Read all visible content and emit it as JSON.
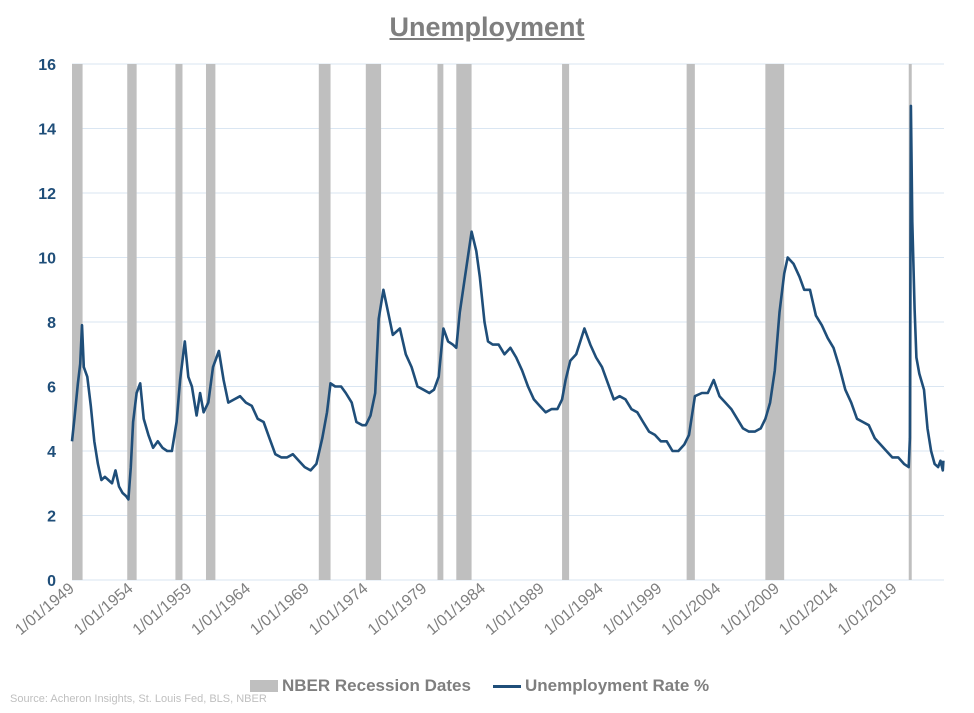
{
  "chart_data": {
    "type": "line",
    "title": "Unemployment",
    "ylim": [
      0,
      16
    ],
    "yticks": [
      0,
      2,
      4,
      6,
      8,
      10,
      12,
      14,
      16
    ],
    "xlim": [
      1948.9,
      2023.1
    ],
    "xtick_labels": [
      "1/01/1949",
      "1/01/1954",
      "1/01/1959",
      "1/01/1964",
      "1/01/1969",
      "1/01/1974",
      "1/01/1979",
      "1/01/1984",
      "1/01/1989",
      "1/01/1994",
      "1/01/1999",
      "1/01/2004",
      "1/01/2009",
      "1/01/2014",
      "1/01/2019"
    ],
    "xtick_years": [
      1949,
      1954,
      1959,
      1964,
      1969,
      1974,
      1979,
      1984,
      1989,
      1994,
      1999,
      2004,
      2009,
      2014,
      2019
    ],
    "grid": true,
    "legend_placement": "bottom",
    "colors": {
      "recession": "#bfbfbf",
      "line": "#1f4e79",
      "grid": "#dae6f2",
      "axis_labels": "#1f4e79",
      "xlabels": "#7f7f7f"
    },
    "recessions": [
      [
        1948.9,
        1949.8
      ],
      [
        1953.6,
        1954.4
      ],
      [
        1957.7,
        1958.3
      ],
      [
        1960.3,
        1961.1
      ],
      [
        1969.9,
        1970.9
      ],
      [
        1973.9,
        1975.2
      ],
      [
        1980.0,
        1980.5
      ],
      [
        1981.6,
        1982.9
      ],
      [
        1990.6,
        1991.2
      ],
      [
        2001.2,
        2001.9
      ],
      [
        2007.9,
        2009.5
      ],
      [
        2020.1,
        2020.3
      ]
    ],
    "series": [
      {
        "name": "NBER Recession Dates",
        "type": "bands"
      },
      {
        "name": "Unemployment Rate %",
        "type": "line",
        "points": [
          [
            1948.9,
            4.3
          ],
          [
            1949.1,
            5.0
          ],
          [
            1949.4,
            6.1
          ],
          [
            1949.6,
            6.7
          ],
          [
            1949.75,
            7.9
          ],
          [
            1949.9,
            6.6
          ],
          [
            1950.2,
            6.3
          ],
          [
            1950.5,
            5.4
          ],
          [
            1950.8,
            4.3
          ],
          [
            1951.1,
            3.6
          ],
          [
            1951.4,
            3.1
          ],
          [
            1951.7,
            3.2
          ],
          [
            1952.0,
            3.1
          ],
          [
            1952.3,
            3.0
          ],
          [
            1952.6,
            3.4
          ],
          [
            1952.9,
            2.9
          ],
          [
            1953.2,
            2.7
          ],
          [
            1953.5,
            2.6
          ],
          [
            1953.7,
            2.5
          ],
          [
            1953.9,
            3.5
          ],
          [
            1954.1,
            4.9
          ],
          [
            1954.4,
            5.8
          ],
          [
            1954.7,
            6.1
          ],
          [
            1955.0,
            5.0
          ],
          [
            1955.4,
            4.5
          ],
          [
            1955.8,
            4.1
          ],
          [
            1956.2,
            4.3
          ],
          [
            1956.6,
            4.1
          ],
          [
            1957.0,
            4.0
          ],
          [
            1957.4,
            4.0
          ],
          [
            1957.8,
            4.9
          ],
          [
            1958.1,
            6.2
          ],
          [
            1958.5,
            7.4
          ],
          [
            1958.8,
            6.3
          ],
          [
            1959.1,
            6.0
          ],
          [
            1959.5,
            5.1
          ],
          [
            1959.8,
            5.8
          ],
          [
            1960.1,
            5.2
          ],
          [
            1960.5,
            5.5
          ],
          [
            1960.9,
            6.6
          ],
          [
            1961.4,
            7.1
          ],
          [
            1961.8,
            6.2
          ],
          [
            1962.2,
            5.5
          ],
          [
            1962.7,
            5.6
          ],
          [
            1963.2,
            5.7
          ],
          [
            1963.7,
            5.5
          ],
          [
            1964.2,
            5.4
          ],
          [
            1964.7,
            5.0
          ],
          [
            1965.2,
            4.9
          ],
          [
            1965.7,
            4.4
          ],
          [
            1966.2,
            3.9
          ],
          [
            1966.7,
            3.8
          ],
          [
            1967.2,
            3.8
          ],
          [
            1967.7,
            3.9
          ],
          [
            1968.2,
            3.7
          ],
          [
            1968.7,
            3.5
          ],
          [
            1969.2,
            3.4
          ],
          [
            1969.7,
            3.6
          ],
          [
            1970.2,
            4.4
          ],
          [
            1970.6,
            5.2
          ],
          [
            1970.9,
            6.1
          ],
          [
            1971.3,
            6.0
          ],
          [
            1971.8,
            6.0
          ],
          [
            1972.2,
            5.8
          ],
          [
            1972.7,
            5.5
          ],
          [
            1973.1,
            4.9
          ],
          [
            1973.6,
            4.8
          ],
          [
            1973.9,
            4.8
          ],
          [
            1974.3,
            5.1
          ],
          [
            1974.7,
            5.8
          ],
          [
            1975.0,
            8.1
          ],
          [
            1975.4,
            9.0
          ],
          [
            1975.8,
            8.3
          ],
          [
            1976.2,
            7.6
          ],
          [
            1976.8,
            7.8
          ],
          [
            1977.3,
            7.0
          ],
          [
            1977.8,
            6.6
          ],
          [
            1978.3,
            6.0
          ],
          [
            1978.8,
            5.9
          ],
          [
            1979.3,
            5.8
          ],
          [
            1979.7,
            5.9
          ],
          [
            1980.1,
            6.3
          ],
          [
            1980.5,
            7.8
          ],
          [
            1980.9,
            7.4
          ],
          [
            1981.3,
            7.3
          ],
          [
            1981.6,
            7.2
          ],
          [
            1981.9,
            8.3
          ],
          [
            1982.3,
            9.3
          ],
          [
            1982.9,
            10.8
          ],
          [
            1983.3,
            10.2
          ],
          [
            1983.6,
            9.4
          ],
          [
            1984.0,
            8.0
          ],
          [
            1984.3,
            7.4
          ],
          [
            1984.7,
            7.3
          ],
          [
            1985.2,
            7.3
          ],
          [
            1985.7,
            7.0
          ],
          [
            1986.2,
            7.2
          ],
          [
            1986.7,
            6.9
          ],
          [
            1987.2,
            6.5
          ],
          [
            1987.7,
            6.0
          ],
          [
            1988.2,
            5.6
          ],
          [
            1988.7,
            5.4
          ],
          [
            1989.2,
            5.2
          ],
          [
            1989.7,
            5.3
          ],
          [
            1990.2,
            5.3
          ],
          [
            1990.6,
            5.6
          ],
          [
            1990.9,
            6.2
          ],
          [
            1991.3,
            6.8
          ],
          [
            1991.8,
            7.0
          ],
          [
            1992.5,
            7.8
          ],
          [
            1993.0,
            7.3
          ],
          [
            1993.5,
            6.9
          ],
          [
            1994.0,
            6.6
          ],
          [
            1994.5,
            6.1
          ],
          [
            1995.0,
            5.6
          ],
          [
            1995.5,
            5.7
          ],
          [
            1996.0,
            5.6
          ],
          [
            1996.5,
            5.3
          ],
          [
            1997.0,
            5.2
          ],
          [
            1997.5,
            4.9
          ],
          [
            1998.0,
            4.6
          ],
          [
            1998.5,
            4.5
          ],
          [
            1999.0,
            4.3
          ],
          [
            1999.5,
            4.3
          ],
          [
            2000.0,
            4.0
          ],
          [
            2000.5,
            4.0
          ],
          [
            2001.0,
            4.2
          ],
          [
            2001.4,
            4.5
          ],
          [
            2001.9,
            5.7
          ],
          [
            2002.5,
            5.8
          ],
          [
            2003.0,
            5.8
          ],
          [
            2003.5,
            6.2
          ],
          [
            2004.0,
            5.7
          ],
          [
            2004.5,
            5.5
          ],
          [
            2005.0,
            5.3
          ],
          [
            2005.5,
            5.0
          ],
          [
            2006.0,
            4.7
          ],
          [
            2006.5,
            4.6
          ],
          [
            2007.0,
            4.6
          ],
          [
            2007.5,
            4.7
          ],
          [
            2007.9,
            5.0
          ],
          [
            2008.3,
            5.5
          ],
          [
            2008.7,
            6.5
          ],
          [
            2009.1,
            8.3
          ],
          [
            2009.5,
            9.5
          ],
          [
            2009.8,
            10.0
          ],
          [
            2010.3,
            9.8
          ],
          [
            2010.8,
            9.4
          ],
          [
            2011.2,
            9.0
          ],
          [
            2011.7,
            9.0
          ],
          [
            2012.2,
            8.2
          ],
          [
            2012.7,
            7.9
          ],
          [
            2013.2,
            7.5
          ],
          [
            2013.7,
            7.2
          ],
          [
            2014.2,
            6.6
          ],
          [
            2014.7,
            5.9
          ],
          [
            2015.2,
            5.5
          ],
          [
            2015.7,
            5.0
          ],
          [
            2016.2,
            4.9
          ],
          [
            2016.7,
            4.8
          ],
          [
            2017.2,
            4.4
          ],
          [
            2017.7,
            4.2
          ],
          [
            2018.2,
            4.0
          ],
          [
            2018.7,
            3.8
          ],
          [
            2019.2,
            3.8
          ],
          [
            2019.7,
            3.6
          ],
          [
            2020.1,
            3.5
          ],
          [
            2020.2,
            4.4
          ],
          [
            2020.28,
            14.7
          ],
          [
            2020.4,
            11.1
          ],
          [
            2020.6,
            8.4
          ],
          [
            2020.75,
            6.9
          ],
          [
            2021.0,
            6.4
          ],
          [
            2021.4,
            5.9
          ],
          [
            2021.7,
            4.7
          ],
          [
            2022.0,
            4.0
          ],
          [
            2022.3,
            3.6
          ],
          [
            2022.6,
            3.5
          ],
          [
            2022.8,
            3.7
          ],
          [
            2023.0,
            3.4
          ],
          [
            2023.05,
            3.7
          ]
        ]
      }
    ],
    "legend": [
      "NBER Recession Dates",
      "Unemployment Rate %"
    ]
  },
  "source": "Source: Acheron Insights, St. Louis Fed, BLS, NBER"
}
